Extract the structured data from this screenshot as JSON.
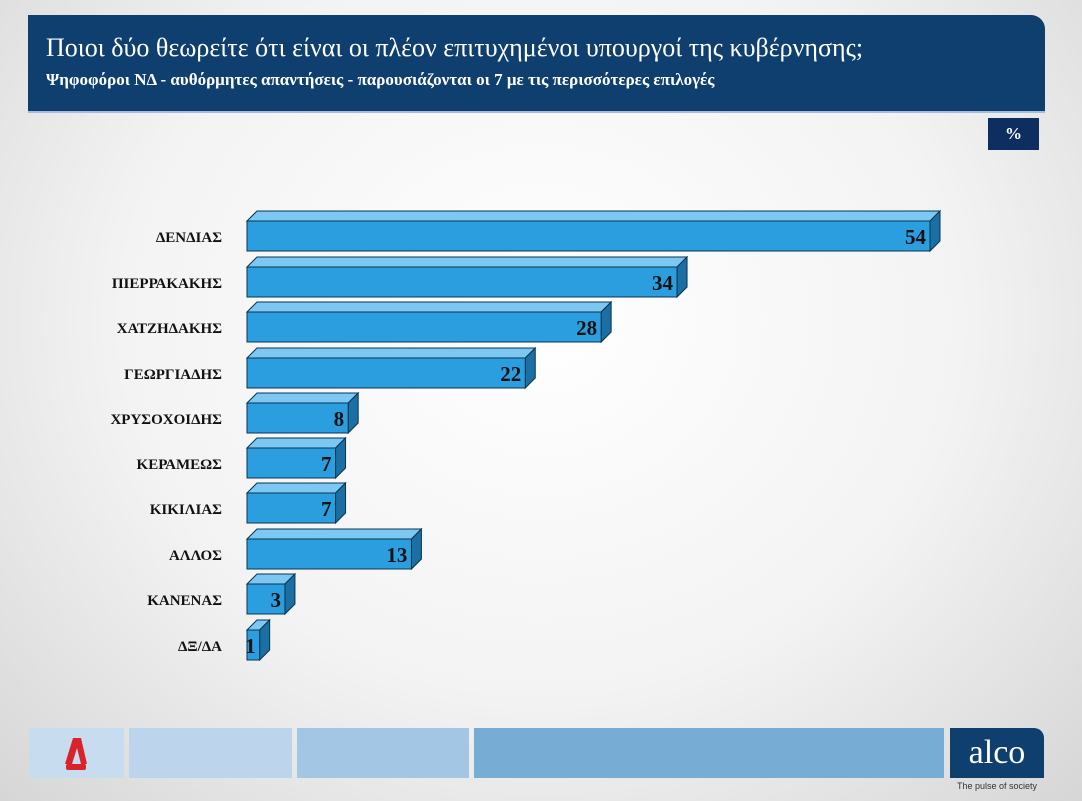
{
  "header": {
    "title": "Ποιοι δύο θεωρείτε ότι είναι οι πλέον επιτυχημένοι υπουργοί της κυβέρνησης;",
    "subtitle": "Ψηφοφόροι ΝΔ - αυθόρμητες απαντήσεις - παρουσιάζονται οι 7 με τις περισσότερες επιλογές"
  },
  "unit_badge": "%",
  "chart_data": {
    "type": "bar",
    "orientation": "horizontal",
    "style": "3d",
    "categories": [
      "ΔΕΝΔΙΑΣ",
      "ΠΙΕΡΡΑΚΑΚΗΣ",
      "ΧΑΤΖΗΔΑΚΗΣ",
      "ΓΕΩΡΓΙΑΔΗΣ",
      "ΧΡΥΣΟΧΟΙΔΗΣ",
      "ΚΕΡΑΜΕΩΣ",
      "ΚΙΚΙΛΙΑΣ",
      "ΑΛΛΟΣ",
      "ΚΑΝΕΝΑΣ",
      "ΔΞ/ΔΑ"
    ],
    "values": [
      54,
      34,
      28,
      22,
      8,
      7,
      7,
      13,
      3,
      1
    ],
    "xlim": [
      0,
      54
    ],
    "grid": false,
    "bar_color": "#2b9ee0"
  },
  "footer": {
    "logo_left": "A news",
    "brand": "alco",
    "tagline": "The pulse of society"
  }
}
